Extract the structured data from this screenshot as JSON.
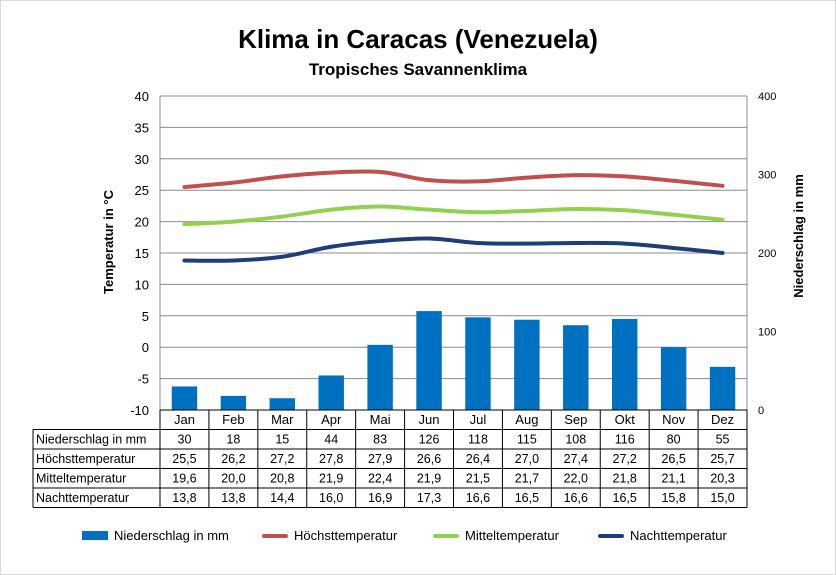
{
  "chart_data": {
    "type": "bar",
    "title": "Klima in Caracas (Venezuela)",
    "subtitle": "Tropisches Savannenklima",
    "ylabel": "Temperatur in °C",
    "y2label": "Niederschlag in mm",
    "ylim": [
      -10,
      40
    ],
    "y2lim": [
      0,
      400
    ],
    "yticks": [
      "40",
      "35",
      "30",
      "25",
      "20",
      "15",
      "10",
      "5",
      "0",
      "-5",
      "-10"
    ],
    "y2ticks": [
      "400",
      "300",
      "200",
      "100",
      "0"
    ],
    "categories": [
      "Jan",
      "Feb",
      "Mar",
      "Apr",
      "Mai",
      "Jun",
      "Jul",
      "Aug",
      "Sep",
      "Okt",
      "Nov",
      "Dez"
    ],
    "grid": true,
    "legend_placement": "bottom",
    "series": [
      {
        "name": "Niederschlag in mm",
        "type": "bar",
        "axis": "right",
        "color": "#0070c0",
        "values": [
          30,
          18,
          15,
          44,
          83,
          126,
          118,
          115,
          108,
          116,
          80,
          55
        ],
        "labels": [
          "30",
          "18",
          "15",
          "44",
          "83",
          "126",
          "118",
          "115",
          "108",
          "116",
          "80",
          "55"
        ]
      },
      {
        "name": "Höchsttemperatur",
        "type": "line",
        "axis": "left",
        "color": "#c0504d",
        "values": [
          25.5,
          26.2,
          27.2,
          27.8,
          27.9,
          26.6,
          26.4,
          27.0,
          27.4,
          27.2,
          26.5,
          25.7
        ],
        "labels": [
          "25,5",
          "26,2",
          "27,2",
          "27,8",
          "27,9",
          "26,6",
          "26,4",
          "27,0",
          "27,4",
          "27,2",
          "26,5",
          "25,7"
        ]
      },
      {
        "name": "Mitteltemperatur",
        "type": "line",
        "axis": "left",
        "color": "#92d050",
        "values": [
          19.6,
          20.0,
          20.8,
          21.9,
          22.4,
          21.9,
          21.5,
          21.7,
          22.0,
          21.8,
          21.1,
          20.3
        ],
        "labels": [
          "19,6",
          "20,0",
          "20,8",
          "21,9",
          "22,4",
          "21,9",
          "21,5",
          "21,7",
          "22,0",
          "21,8",
          "21,1",
          "20,3"
        ]
      },
      {
        "name": "Nachttemperatur",
        "type": "line",
        "axis": "left",
        "color": "#1f3d7a",
        "values": [
          13.8,
          13.8,
          14.4,
          16.0,
          16.9,
          17.3,
          16.6,
          16.5,
          16.6,
          16.5,
          15.8,
          15.0
        ],
        "labels": [
          "13,8",
          "13,8",
          "14,4",
          "16,0",
          "16,9",
          "17,3",
          "16,6",
          "16,5",
          "16,6",
          "16,5",
          "15,8",
          "15,0"
        ]
      }
    ]
  }
}
